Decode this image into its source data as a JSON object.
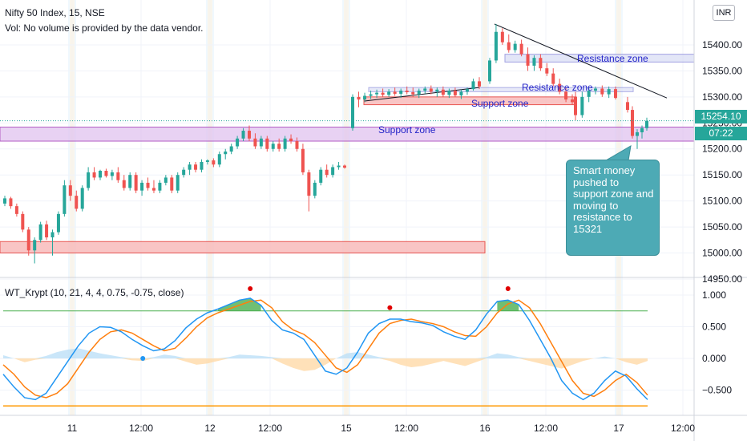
{
  "header": {
    "title": "Nifty 50 Index, 15, NSE",
    "volume_note": "Vol: No volume is provided by the data vendor.",
    "currency": "INR"
  },
  "price_tags": {
    "last_price": "15254.10",
    "countdown": "07:22"
  },
  "annotations": {
    "callout": "Smart money pushed to support zone and moving to resistance to 15321",
    "zones": [
      {
        "name": "Support zone",
        "type": "support",
        "from": 15215,
        "to": 15242,
        "color": "#e1c4f0"
      },
      {
        "name": "Support zone",
        "type": "support",
        "from": 15285,
        "to": 15300,
        "color": "#f8bcbc"
      },
      {
        "name": "Resistance zone",
        "type": "resistance",
        "from": 15367,
        "to": 15382,
        "color": "#d8dcf5"
      },
      {
        "name": "Resistance zone",
        "type": "resistance",
        "from": 15310,
        "to": 15318,
        "color": "#d8dcf5"
      },
      {
        "name": "",
        "type": "demand",
        "from": 15000,
        "to": 15022,
        "color": "#f8bcbc"
      }
    ]
  },
  "colors": {
    "up": "#26a69a",
    "down": "#ef5350",
    "wt1": "#2196f3",
    "wt2": "#ff7f0e",
    "support_line": "#9b27b0",
    "overbought": "#4caf50",
    "oversold": "#ff9800"
  },
  "chart_data": {
    "type": "candlestick",
    "title": "Nifty 50 Index, 15, NSE",
    "price_axis": {
      "ticks": [
        14950,
        15000,
        15050,
        15100,
        15150,
        15200,
        15250,
        15300,
        15350,
        15400
      ],
      "tick_labels": [
        "14950.00",
        "15000.00",
        "15050.00",
        "15100.00",
        "15150.00",
        "15200.00",
        "15250.00",
        "15300.00",
        "15350.00",
        "15400.00"
      ]
    },
    "time_axis": {
      "labels": [
        "11",
        "12:00",
        "12",
        "12:00",
        "15",
        "12:00",
        "16",
        "12:00",
        "17",
        "12:00"
      ]
    },
    "candles": [
      {
        "o": 15095,
        "h": 15110,
        "l": 15090,
        "c": 15105
      },
      {
        "o": 15105,
        "h": 15108,
        "l": 15085,
        "c": 15090
      },
      {
        "o": 15090,
        "h": 15095,
        "l": 15070,
        "c": 15075
      },
      {
        "o": 15075,
        "h": 15080,
        "l": 15040,
        "c": 15045
      },
      {
        "o": 15045,
        "h": 15050,
        "l": 14995,
        "c": 15005
      },
      {
        "o": 15005,
        "h": 15030,
        "l": 14980,
        "c": 15025
      },
      {
        "o": 15025,
        "h": 15060,
        "l": 15020,
        "c": 15055
      },
      {
        "o": 15055,
        "h": 15062,
        "l": 15025,
        "c": 15030
      },
      {
        "o": 15030,
        "h": 15045,
        "l": 14995,
        "c": 15040
      },
      {
        "o": 15040,
        "h": 15080,
        "l": 15035,
        "c": 15075
      },
      {
        "o": 15075,
        "h": 15140,
        "l": 15070,
        "c": 15130
      },
      {
        "o": 15130,
        "h": 15140,
        "l": 15100,
        "c": 15110
      },
      {
        "o": 15110,
        "h": 15120,
        "l": 15080,
        "c": 15085
      },
      {
        "o": 15085,
        "h": 15130,
        "l": 15080,
        "c": 15125
      },
      {
        "o": 15125,
        "h": 15165,
        "l": 15120,
        "c": 15155
      },
      {
        "o": 15155,
        "h": 15165,
        "l": 15140,
        "c": 15145
      },
      {
        "o": 15145,
        "h": 15160,
        "l": 15140,
        "c": 15158
      },
      {
        "o": 15158,
        "h": 15162,
        "l": 15145,
        "c": 15148
      },
      {
        "o": 15148,
        "h": 15160,
        "l": 15140,
        "c": 15155
      },
      {
        "o": 15155,
        "h": 15165,
        "l": 15135,
        "c": 15140
      },
      {
        "o": 15140,
        "h": 15150,
        "l": 15120,
        "c": 15125
      },
      {
        "o": 15125,
        "h": 15155,
        "l": 15120,
        "c": 15150
      },
      {
        "o": 15150,
        "h": 15155,
        "l": 15115,
        "c": 15120
      },
      {
        "o": 15120,
        "h": 15140,
        "l": 15110,
        "c": 15135
      },
      {
        "o": 15135,
        "h": 15145,
        "l": 15120,
        "c": 15125
      },
      {
        "o": 15125,
        "h": 15140,
        "l": 15115,
        "c": 15120
      },
      {
        "o": 15120,
        "h": 15140,
        "l": 15115,
        "c": 15135
      },
      {
        "o": 15135,
        "h": 15150,
        "l": 15130,
        "c": 15145
      },
      {
        "o": 15145,
        "h": 15150,
        "l": 15115,
        "c": 15120
      },
      {
        "o": 15120,
        "h": 15155,
        "l": 15115,
        "c": 15150
      },
      {
        "o": 15150,
        "h": 15165,
        "l": 15145,
        "c": 15160
      },
      {
        "o": 15160,
        "h": 15175,
        "l": 15150,
        "c": 15170
      },
      {
        "o": 15170,
        "h": 15175,
        "l": 15155,
        "c": 15160
      },
      {
        "o": 15160,
        "h": 15180,
        "l": 15155,
        "c": 15175
      },
      {
        "o": 15175,
        "h": 15180,
        "l": 15170,
        "c": 15178
      },
      {
        "o": 15178,
        "h": 15182,
        "l": 15165,
        "c": 15170
      },
      {
        "o": 15170,
        "h": 15195,
        "l": 15165,
        "c": 15190
      },
      {
        "o": 15190,
        "h": 15200,
        "l": 15180,
        "c": 15195
      },
      {
        "o": 15195,
        "h": 15210,
        "l": 15190,
        "c": 15205
      },
      {
        "o": 15205,
        "h": 15225,
        "l": 15200,
        "c": 15220
      },
      {
        "o": 15220,
        "h": 15240,
        "l": 15215,
        "c": 15235
      },
      {
        "o": 15235,
        "h": 15245,
        "l": 15215,
        "c": 15220
      },
      {
        "o": 15220,
        "h": 15230,
        "l": 15200,
        "c": 15205
      },
      {
        "o": 15205,
        "h": 15225,
        "l": 15200,
        "c": 15220
      },
      {
        "o": 15220,
        "h": 15225,
        "l": 15195,
        "c": 15200
      },
      {
        "o": 15200,
        "h": 15215,
        "l": 15195,
        "c": 15210
      },
      {
        "o": 15210,
        "h": 15220,
        "l": 15195,
        "c": 15200
      },
      {
        "o": 15200,
        "h": 15225,
        "l": 15195,
        "c": 15220
      },
      {
        "o": 15220,
        "h": 15228,
        "l": 15210,
        "c": 15215
      },
      {
        "o": 15215,
        "h": 15222,
        "l": 15195,
        "c": 15200
      },
      {
        "o": 15200,
        "h": 15210,
        "l": 15150,
        "c": 15155
      },
      {
        "o": 15155,
        "h": 15160,
        "l": 15080,
        "c": 15110
      },
      {
        "o": 15110,
        "h": 15140,
        "l": 15105,
        "c": 15135
      },
      {
        "o": 15135,
        "h": 15165,
        "l": 15130,
        "c": 15160
      },
      {
        "o": 15160,
        "h": 15170,
        "l": 15145,
        "c": 15150
      },
      {
        "o": 15150,
        "h": 15170,
        "l": 15145,
        "c": 15165
      },
      {
        "o": 15165,
        "h": 15175,
        "l": 15160,
        "c": 15168
      },
      {
        "o": 15168,
        "h": 15170,
        "l": 15162,
        "c": 15164
      },
      {
        "o": 15240,
        "h": 15305,
        "l": 15235,
        "c": 15300
      },
      {
        "o": 15300,
        "h": 15310,
        "l": 15280,
        "c": 15295
      },
      {
        "o": 15295,
        "h": 15308,
        "l": 15290,
        "c": 15302
      },
      {
        "o": 15302,
        "h": 15312,
        "l": 15296,
        "c": 15305
      },
      {
        "o": 15305,
        "h": 15314,
        "l": 15298,
        "c": 15308
      },
      {
        "o": 15308,
        "h": 15316,
        "l": 15300,
        "c": 15304
      },
      {
        "o": 15304,
        "h": 15315,
        "l": 15300,
        "c": 15310
      },
      {
        "o": 15310,
        "h": 15318,
        "l": 15302,
        "c": 15306
      },
      {
        "o": 15306,
        "h": 15316,
        "l": 15298,
        "c": 15312
      },
      {
        "o": 15312,
        "h": 15320,
        "l": 15305,
        "c": 15309
      },
      {
        "o": 15309,
        "h": 15318,
        "l": 15300,
        "c": 15305
      },
      {
        "o": 15305,
        "h": 15316,
        "l": 15298,
        "c": 15312
      },
      {
        "o": 15312,
        "h": 15320,
        "l": 15306,
        "c": 15316
      },
      {
        "o": 15316,
        "h": 15322,
        "l": 15305,
        "c": 15310
      },
      {
        "o": 15310,
        "h": 15318,
        "l": 15300,
        "c": 15314
      },
      {
        "o": 15314,
        "h": 15320,
        "l": 15300,
        "c": 15304
      },
      {
        "o": 15304,
        "h": 15316,
        "l": 15298,
        "c": 15312
      },
      {
        "o": 15312,
        "h": 15318,
        "l": 15300,
        "c": 15303
      },
      {
        "o": 15303,
        "h": 15314,
        "l": 15296,
        "c": 15310
      },
      {
        "o": 15310,
        "h": 15318,
        "l": 15304,
        "c": 15315
      },
      {
        "o": 15315,
        "h": 15335,
        "l": 15312,
        "c": 15330
      },
      {
        "o": 15330,
        "h": 15338,
        "l": 15315,
        "c": 15320
      },
      {
        "o": 15330,
        "h": 15375,
        "l": 15325,
        "c": 15370
      },
      {
        "o": 15370,
        "h": 15440,
        "l": 15365,
        "c": 15425
      },
      {
        "o": 15425,
        "h": 15432,
        "l": 15400,
        "c": 15405
      },
      {
        "o": 15405,
        "h": 15420,
        "l": 15385,
        "c": 15390
      },
      {
        "o": 15390,
        "h": 15408,
        "l": 15385,
        "c": 15402
      },
      {
        "o": 15402,
        "h": 15410,
        "l": 15378,
        "c": 15382
      },
      {
        "o": 15382,
        "h": 15395,
        "l": 15350,
        "c": 15360
      },
      {
        "o": 15360,
        "h": 15380,
        "l": 15350,
        "c": 15375
      },
      {
        "o": 15375,
        "h": 15382,
        "l": 15350,
        "c": 15355
      },
      {
        "o": 15355,
        "h": 15365,
        "l": 15340,
        "c": 15345
      },
      {
        "o": 15345,
        "h": 15355,
        "l": 15320,
        "c": 15325
      },
      {
        "o": 15325,
        "h": 15335,
        "l": 15305,
        "c": 15310
      },
      {
        "o": 15310,
        "h": 15318,
        "l": 15290,
        "c": 15295
      },
      {
        "o": 15295,
        "h": 15305,
        "l": 15285,
        "c": 15290
      },
      {
        "o": 15300,
        "h": 15310,
        "l": 15255,
        "c": 15265
      },
      {
        "o": 15265,
        "h": 15310,
        "l": 15260,
        "c": 15300
      },
      {
        "o": 15300,
        "h": 15318,
        "l": 15290,
        "c": 15312
      },
      {
        "o": 15312,
        "h": 15320,
        "l": 15305,
        "c": 15316
      },
      {
        "o": 15316,
        "h": 15322,
        "l": 15300,
        "c": 15305
      },
      {
        "o": 15305,
        "h": 15320,
        "l": 15298,
        "c": 15315
      },
      {
        "o": 15315,
        "h": 15320,
        "l": 15295,
        "c": 15298
      },
      {
        "o": 15290,
        "h": 15300,
        "l": 15270,
        "c": 15275
      },
      {
        "o": 15275,
        "h": 15282,
        "l": 15220,
        "c": 15225
      },
      {
        "o": 15225,
        "h": 15238,
        "l": 15200,
        "c": 15232
      },
      {
        "o": 15232,
        "h": 15245,
        "l": 15220,
        "c": 15240
      },
      {
        "o": 15240,
        "h": 15260,
        "l": 15235,
        "c": 15254
      }
    ],
    "indicator": {
      "name": "WT_Krypt (10, 21, 4, 4, 0.75, -0.75, close)",
      "axis_ticks": [
        1.0,
        0.5,
        0.0,
        -0.5
      ],
      "axis_tick_labels": [
        "1.000",
        "0.500",
        "0.000",
        "−0.500"
      ],
      "overbought": 0.75,
      "oversold": -0.75,
      "wt1": [
        -0.25,
        -0.45,
        -0.62,
        -0.65,
        -0.55,
        -0.3,
        -0.05,
        0.2,
        0.4,
        0.5,
        0.49,
        0.42,
        0.3,
        0.2,
        0.12,
        0.15,
        0.28,
        0.48,
        0.62,
        0.72,
        0.78,
        0.85,
        0.92,
        0.95,
        0.84,
        0.6,
        0.45,
        0.4,
        0.3,
        0.05,
        -0.2,
        -0.25,
        -0.15,
        0.1,
        0.4,
        0.55,
        0.62,
        0.62,
        0.58,
        0.56,
        0.52,
        0.42,
        0.35,
        0.3,
        0.45,
        0.7,
        0.9,
        0.92,
        0.85,
        0.6,
        0.3,
        0.0,
        -0.35,
        -0.55,
        -0.65,
        -0.55,
        -0.35,
        -0.2,
        -0.28,
        -0.48,
        -0.65
      ],
      "wt2": [
        -0.1,
        -0.25,
        -0.45,
        -0.58,
        -0.62,
        -0.55,
        -0.4,
        -0.15,
        0.1,
        0.3,
        0.42,
        0.45,
        0.4,
        0.3,
        0.2,
        0.12,
        0.16,
        0.32,
        0.5,
        0.64,
        0.72,
        0.78,
        0.84,
        0.9,
        0.92,
        0.8,
        0.58,
        0.45,
        0.38,
        0.25,
        0.05,
        -0.15,
        -0.22,
        -0.1,
        0.15,
        0.4,
        0.55,
        0.6,
        0.62,
        0.58,
        0.55,
        0.5,
        0.42,
        0.36,
        0.35,
        0.5,
        0.72,
        0.86,
        0.92,
        0.8,
        0.55,
        0.25,
        -0.05,
        -0.35,
        -0.55,
        -0.6,
        -0.5,
        -0.35,
        -0.25,
        -0.38,
        -0.58
      ],
      "histogram": [
        0.05,
        0.0,
        -0.06,
        -0.02,
        0.04,
        0.1,
        0.14,
        0.16,
        0.12,
        0.08,
        0.05,
        0.02,
        -0.03,
        -0.04,
        0.02,
        0.06,
        0.04,
        -0.05,
        -0.1,
        -0.08,
        -0.04,
        0.02,
        0.06,
        0.05,
        0.04,
        0.02,
        -0.08,
        -0.15,
        -0.2,
        -0.18,
        -0.1,
        0.0,
        0.08,
        0.1,
        0.06,
        0.02,
        -0.04,
        -0.1,
        -0.14,
        -0.12,
        -0.08,
        -0.04,
        -0.08,
        -0.12,
        -0.06,
        0.02,
        0.08,
        0.06,
        0.02,
        -0.04,
        -0.08,
        -0.12,
        -0.16,
        -0.1,
        -0.04,
        0.0,
        0.03,
        0.0,
        -0.06,
        -0.1,
        -0.04
      ],
      "signals": [
        {
          "index": 23,
          "value": 1.05,
          "kind": "sell"
        },
        {
          "index": 13,
          "value": 0.0,
          "kind": "buy"
        },
        {
          "index": 36,
          "value": 0.75,
          "kind": "sell"
        },
        {
          "index": 47,
          "value": 1.05,
          "kind": "sell"
        }
      ]
    }
  }
}
